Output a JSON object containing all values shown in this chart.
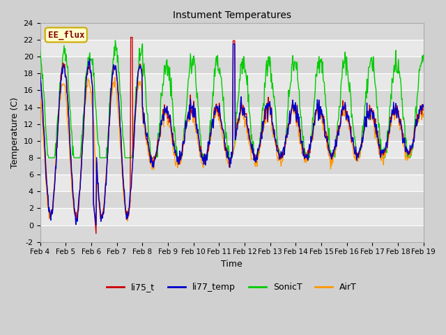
{
  "title": "Instument Temperatures",
  "xlabel": "Time",
  "ylabel": "Temperature (C)",
  "ylim": [
    -2,
    24
  ],
  "yticks": [
    -2,
    0,
    2,
    4,
    6,
    8,
    10,
    12,
    14,
    16,
    18,
    20,
    22,
    24
  ],
  "date_labels": [
    "Feb 4",
    "Feb 5",
    "Feb 6",
    "Feb 7",
    "Feb 8",
    "Feb 9",
    "Feb 10",
    "Feb 11",
    "Feb 12",
    "Feb 13",
    "Feb 14",
    "Feb 15",
    "Feb 16",
    "Feb 17",
    "Feb 18",
    "Feb 19"
  ],
  "colors": {
    "li75_t": "#cc0000",
    "li77_temp": "#0000cc",
    "SonicT": "#00cc00",
    "AirT": "#ff9900"
  },
  "legend_label": "EE_flux",
  "legend_bg": "#ffffcc",
  "legend_border": "#ccaa00",
  "legend_text_color": "#800000",
  "grid_color": "#ffffff",
  "linewidth": 1.0,
  "figsize": [
    6.4,
    4.8
  ],
  "dpi": 100
}
